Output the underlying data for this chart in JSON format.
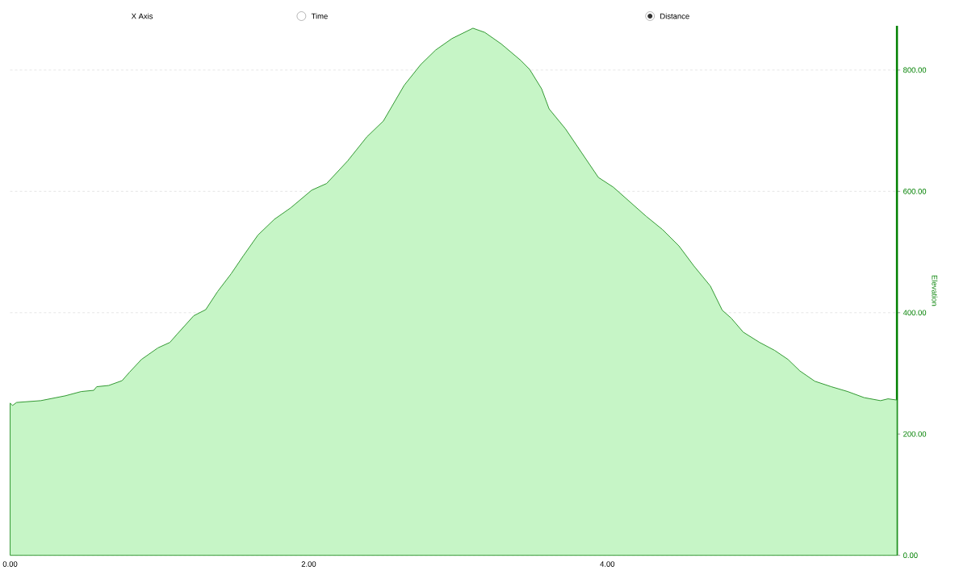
{
  "chart_data": {
    "type": "area",
    "ylabel": "Elevation",
    "annotations": [
      "X Axis",
      "Time",
      "Distance"
    ],
    "x": [
      0,
      0.016,
      0.043,
      0.205,
      0.37,
      0.476,
      0.56,
      0.58,
      0.66,
      0.75,
      0.8,
      0.88,
      0.99,
      1.07,
      1.12,
      1.23,
      1.31,
      1.39,
      1.48,
      1.56,
      1.66,
      1.77,
      1.88,
      2.02,
      2.12,
      2.26,
      2.39,
      2.5,
      2.64,
      2.75,
      2.85,
      2.96,
      3.1,
      3.18,
      3.29,
      3.42,
      3.48,
      3.56,
      3.61,
      3.72,
      3.83,
      3.94,
      4.04,
      4.15,
      4.26,
      4.37,
      4.48,
      4.58,
      4.69,
      4.77,
      4.83,
      4.91,
      5.02,
      5.12,
      5.21,
      5.29,
      5.39,
      5.5,
      5.61,
      5.72,
      5.83,
      5.88,
      5.94
    ],
    "values": [
      251,
      247,
      252,
      255,
      263,
      270,
      272,
      278,
      280,
      288,
      302,
      323,
      342,
      351,
      365,
      395,
      405,
      435,
      464,
      493,
      528,
      554,
      573,
      602,
      613,
      650,
      690,
      716,
      775,
      809,
      833,
      852,
      869,
      862,
      843,
      816,
      801,
      769,
      736,
      703,
      663,
      623,
      607,
      583,
      559,
      537,
      510,
      477,
      444,
      404,
      391,
      368,
      351,
      338,
      323,
      304,
      287,
      278,
      270,
      260,
      255,
      258,
      256
    ],
    "color": "#339933",
    "xlim": [
      0,
      5.94
    ],
    "ylim": [
      0,
      873
    ],
    "xticks": [
      {
        "value": 0,
        "label": "0.00"
      },
      {
        "value": 2,
        "label": "2.00"
      },
      {
        "value": 4,
        "label": "4.00"
      }
    ],
    "yticks": [
      {
        "value": 0,
        "label": "0.00"
      },
      {
        "value": 200,
        "label": "200.00"
      },
      {
        "value": 400,
        "label": "400.00"
      },
      {
        "value": 600,
        "label": "600.00"
      },
      {
        "value": 800,
        "label": "800.00"
      }
    ],
    "grid": "y"
  }
}
